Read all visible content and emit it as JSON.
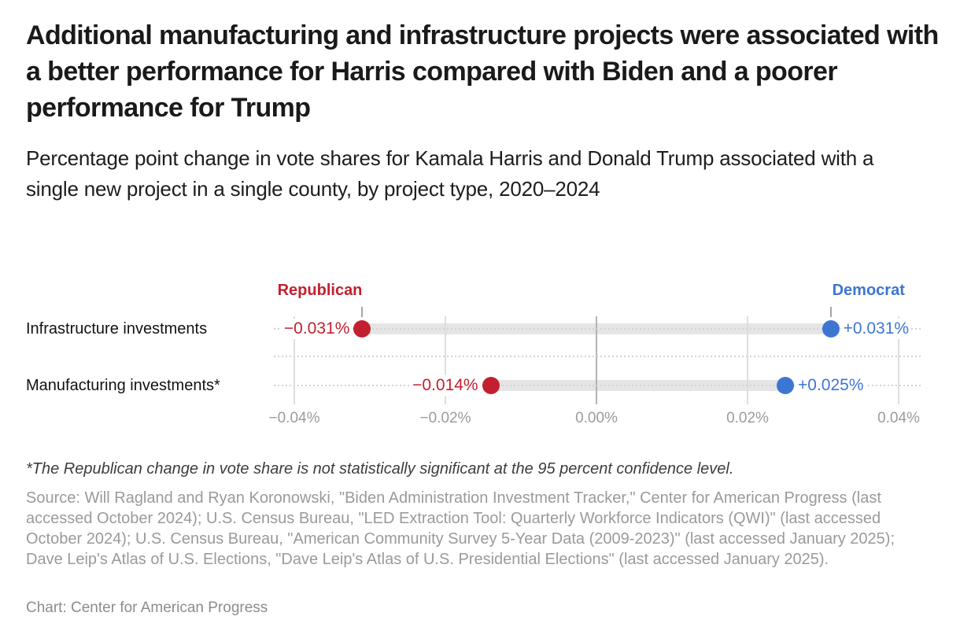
{
  "header": {
    "title": "Additional manufacturing and infrastructure projects were associated with a better performance for Harris compared with Biden and a poorer performance for Trump",
    "subtitle": "Percentage point change in vote shares for Kamala Harris and Donald Trump associated with a single new project in a single county, by project type, 2020–2024"
  },
  "chart_data": {
    "type": "dumbbell",
    "categories": [
      "Infrastructure investments",
      "Manufacturing investments*"
    ],
    "series": [
      {
        "name": "Republican",
        "color": "#c2202f",
        "values": [
          -0.031,
          -0.014
        ],
        "value_labels": [
          "−0.031%",
          "−0.014%"
        ]
      },
      {
        "name": "Democrat",
        "color": "#3d76d2",
        "values": [
          0.031,
          0.025
        ],
        "value_labels": [
          "+0.031%",
          "+0.025%"
        ]
      }
    ],
    "xticks": [
      {
        "value": -0.04,
        "label": "−0.04%"
      },
      {
        "value": -0.02,
        "label": "−0.02%"
      },
      {
        "value": 0.0,
        "label": "0.00%"
      },
      {
        "value": 0.02,
        "label": "0.02%"
      },
      {
        "value": 0.04,
        "label": "0.04%"
      }
    ],
    "xlim": [
      -0.0427,
      0.0429
    ],
    "unit": "%",
    "grid": true,
    "legend_position": "above first row dots",
    "colors": {
      "bar": "#e5e5e5",
      "dotted_line": "#d4d4d4",
      "gridline": "#dedede",
      "zero_gridline": "#b3b3b3",
      "axis_text": "#9b9b9b",
      "legend_tick": "#a6a6a6"
    }
  },
  "footnote": "*The Republican change in vote share is not statistically significant at the 95 percent confidence level.",
  "source": "Source: Will Ragland and Ryan Koronowski, \"Biden Administration Investment Tracker,\" Center for American Progress (last accessed October 2024); U.S. Census Bureau, \"LED Extraction Tool: Quarterly Workforce Indicators (QWI)\" (last accessed October 2024); U.S. Census Bureau, \"American Community Survey 5-Year Data (2009-2023)\" (last accessed January 2025); Dave Leip's Atlas of U.S. Elections, \"Dave Leip's Atlas of U.S. Presidential Elections\" (last accessed January 2025).",
  "credit": "Chart: Center for American Progress"
}
